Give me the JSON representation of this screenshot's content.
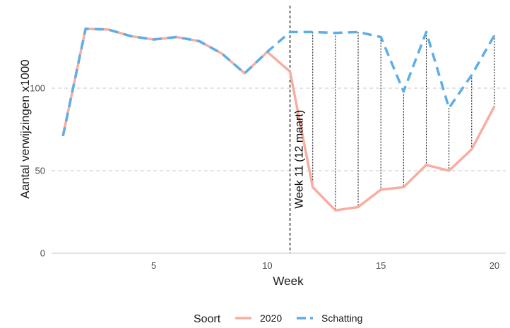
{
  "chart_data": {
    "type": "line",
    "xlabel": "Week",
    "ylabel": "Aantal verwijzingen x1000",
    "xlim": [
      0.5,
      20.5
    ],
    "ylim": [
      0,
      150
    ],
    "xticks": [
      5,
      10,
      15,
      20
    ],
    "yticks": [
      0,
      50,
      100
    ],
    "grid": "horizontal dashed",
    "series": [
      {
        "name": "Schatting",
        "color": "#5DADE9",
        "style": "dashed",
        "x": [
          1,
          2,
          3,
          4,
          5,
          6,
          7,
          8,
          9,
          10,
          11,
          12,
          13,
          14,
          15,
          16,
          17,
          18,
          19,
          20
        ],
        "values": [
          71,
          136,
          135.5,
          131.5,
          129.5,
          131,
          128.5,
          121,
          109,
          122,
          134,
          134,
          133.5,
          134,
          131,
          98,
          134,
          88,
          108,
          132
        ]
      },
      {
        "name": "2020",
        "color": "#F8ADA1",
        "style": "solid",
        "x": [
          1,
          2,
          3,
          4,
          5,
          6,
          7,
          8,
          9,
          10,
          11,
          12,
          13,
          14,
          15,
          16,
          17,
          18,
          19,
          20
        ],
        "values": [
          71,
          136,
          135.5,
          131.5,
          129.5,
          131,
          128.5,
          121,
          109,
          122,
          110,
          40,
          26,
          28,
          38.5,
          40,
          53.5,
          50,
          63,
          89
        ]
      }
    ],
    "annotation": {
      "x": 11,
      "text": "Week 11 (12 maart)"
    },
    "gap_lines_weeks": [
      12,
      13,
      14,
      15,
      16,
      17,
      18,
      19,
      20
    ],
    "legend": {
      "position": "bottom",
      "title": "Soort",
      "entries": [
        "2020",
        "Schatting"
      ]
    }
  }
}
